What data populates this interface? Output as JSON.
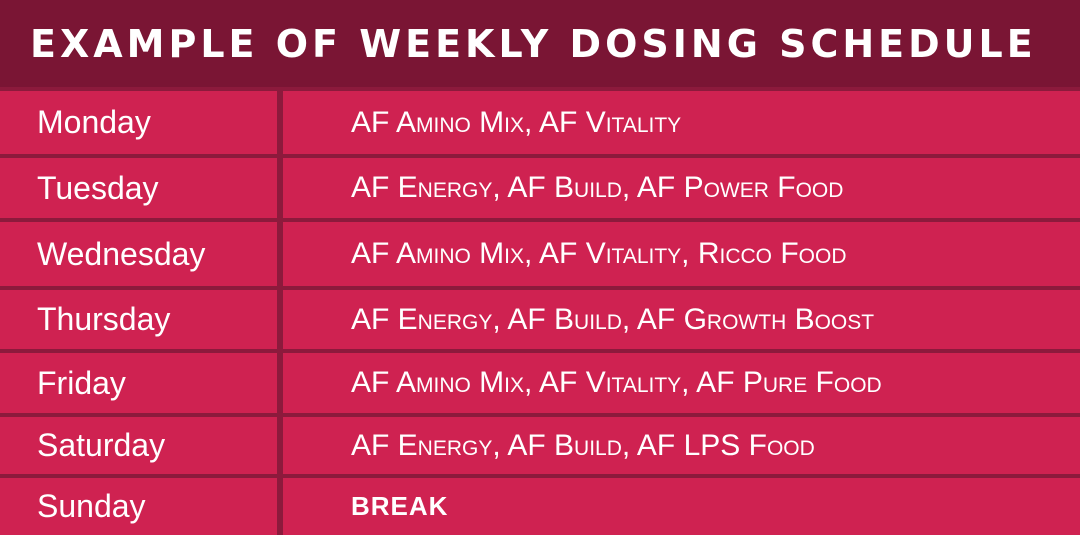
{
  "title": "EXAMPLE OF WEEKLY DOSING SCHEDULE",
  "colors": {
    "header_bg": "#7a1534",
    "cell_bg": "#cf2251",
    "divider": "#8c1a3c",
    "text": "#ffffff"
  },
  "schedule": [
    {
      "day": "Monday",
      "items": "AF Amino Mix, AF Vitality"
    },
    {
      "day": "Tuesday",
      "items": "AF Energy, AF Build, AF Power Food"
    },
    {
      "day": "Wednesday",
      "items": "AF Amino Mix, AF Vitality, Ricco Food"
    },
    {
      "day": "Thursday",
      "items": "AF Energy, AF Build, AF Growth Boost"
    },
    {
      "day": "Friday",
      "items": "AF Amino Mix, AF Vitality, AF Pure Food"
    },
    {
      "day": "Saturday",
      "items": "AF Energy, AF Build, AF LPS Food"
    },
    {
      "day": "Sunday",
      "items": "BREAK"
    }
  ]
}
